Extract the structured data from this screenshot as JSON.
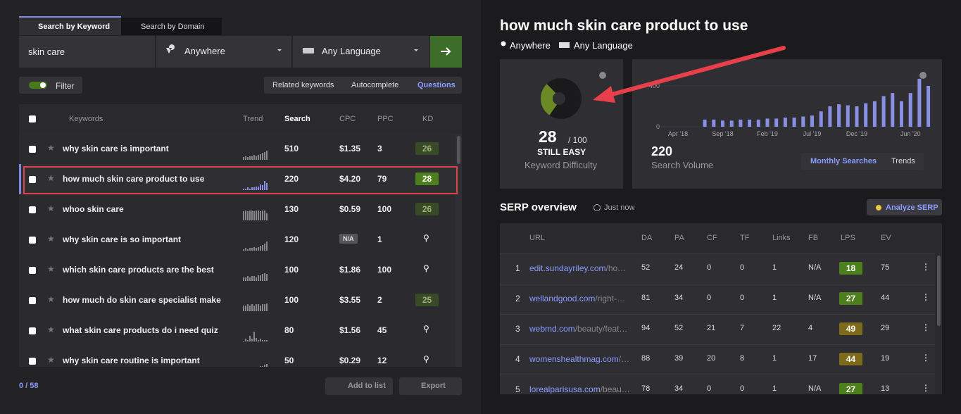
{
  "tabs": [
    "Search by Keyword",
    "Search by Domain"
  ],
  "search": {
    "query": "skin care",
    "location": "Anywhere",
    "language": "Any Language"
  },
  "filter": "Filter",
  "modes": [
    "Related keywords",
    "Autocomplete",
    "Questions"
  ],
  "keyword_table": {
    "columns": [
      "Keywords",
      "Trend",
      "Search",
      "CPC",
      "PPC",
      "KD"
    ],
    "rows": [
      {
        "keyword": "why skin care is important",
        "trend": [
          2,
          3,
          2,
          3,
          3,
          4,
          3,
          4,
          5,
          6,
          7,
          8
        ],
        "search": 510,
        "cpc": "$1.35",
        "ppc": 3,
        "kd": 26
      },
      {
        "keyword": "how much skin care product to use",
        "trend": [
          1,
          1,
          2,
          1,
          2,
          2,
          3,
          3,
          5,
          4,
          8,
          6
        ],
        "search": 220,
        "cpc": "$4.20",
        "ppc": 79,
        "kd": 28
      },
      {
        "keyword": "whoo skin care",
        "trend": [
          8,
          9,
          8,
          9,
          9,
          8,
          9,
          9,
          8,
          9,
          9,
          6
        ],
        "search": 130,
        "cpc": "$0.59",
        "ppc": 100,
        "kd": 26
      },
      {
        "keyword": "why skin care is so important",
        "trend": [
          1,
          2,
          1,
          2,
          2,
          3,
          2,
          3,
          4,
          5,
          6,
          8
        ],
        "search": 120,
        "cpc": "N/A",
        "ppc": 1,
        "kd": null
      },
      {
        "keyword": "which skin care products are the best",
        "trend": [
          3,
          3,
          4,
          3,
          4,
          4,
          3,
          5,
          5,
          6,
          7,
          6
        ],
        "search": 100,
        "cpc": "$1.86",
        "ppc": 100,
        "kd": null
      },
      {
        "keyword": "how much do skin care specialist make",
        "trend": [
          5,
          5,
          6,
          5,
          6,
          5,
          6,
          6,
          5,
          6,
          6,
          7
        ],
        "search": 100,
        "cpc": "$3.55",
        "ppc": 2,
        "kd": 25
      },
      {
        "keyword": "what skin care products do i need quiz",
        "trend": [
          0,
          2,
          1,
          5,
          2,
          9,
          3,
          1,
          2,
          1,
          1,
          1
        ],
        "search": 80,
        "cpc": "$1.56",
        "ppc": 45,
        "kd": null
      },
      {
        "keyword": "why skin care routine is important",
        "trend": [
          2,
          2,
          3,
          2,
          3,
          4,
          3,
          4,
          5,
          5,
          6,
          7
        ],
        "search": 50,
        "cpc": "$0.29",
        "ppc": 12,
        "kd": null
      }
    ]
  },
  "footer": {
    "count": "0 / 58",
    "add": "Add to list",
    "export": "Export"
  },
  "keyword": {
    "title": "how much skin care product to use",
    "location": "Anywhere",
    "language": "Any Language"
  },
  "difficulty": {
    "score": 28,
    "out_of": "/ 100",
    "status": "STILL EASY",
    "label": "Keyword Difficulty"
  },
  "volume": {
    "value": 220,
    "label": "Search Volume",
    "buttons": [
      "Monthly Searches",
      "Trends"
    ],
    "chart": {
      "ylim": [
        0,
        400
      ],
      "yticks": [
        0,
        400
      ],
      "xticks": [
        {
          "value": 0,
          "label": "Apr '18"
        },
        {
          "value": 5,
          "label": "Sep '18"
        },
        {
          "value": 10,
          "label": "Feb '19"
        },
        {
          "value": 15,
          "label": "Jul '19"
        },
        {
          "value": 20,
          "label": "Dec '19"
        },
        {
          "value": 26,
          "label": "Jun '20"
        }
      ],
      "values": [
        null,
        null,
        null,
        70,
        70,
        60,
        60,
        70,
        70,
        70,
        80,
        80,
        90,
        90,
        100,
        110,
        150,
        200,
        220,
        210,
        200,
        230,
        250,
        300,
        330,
        250,
        330,
        470,
        400
      ]
    }
  },
  "serp": {
    "title": "SERP overview",
    "time": "Just now",
    "button": "Analyze SERP",
    "columns": [
      "URL",
      "DA",
      "PA",
      "CF",
      "TF",
      "Links",
      "FB",
      "LPS",
      "EV"
    ],
    "rows": [
      {
        "rank": 1,
        "domain": "edit.sundayriley.com",
        "path": "/ho…",
        "da": 52,
        "pa": 24,
        "cf": 0,
        "tf": 0,
        "links": 1,
        "fb": "N/A",
        "lps": 18,
        "ev": 75
      },
      {
        "rank": 2,
        "domain": "wellandgood.com",
        "path": "/right-…",
        "da": 81,
        "pa": 34,
        "cf": 0,
        "tf": 0,
        "links": 1,
        "fb": "N/A",
        "lps": 27,
        "ev": 44
      },
      {
        "rank": 3,
        "domain": "webmd.com",
        "path": "/beauty/feat…",
        "da": 94,
        "pa": 52,
        "cf": 21,
        "tf": 7,
        "links": 22,
        "fb": 4,
        "lps": 49,
        "ev": 29
      },
      {
        "rank": 4,
        "domain": "womenshealthmag.com",
        "path": "/…",
        "da": 88,
        "pa": 39,
        "cf": 20,
        "tf": 8,
        "links": 1,
        "fb": 17,
        "lps": 44,
        "ev": 19
      },
      {
        "rank": 5,
        "domain": "lorealparisusa.com",
        "path": "/beau…",
        "da": 78,
        "pa": 34,
        "cf": 0,
        "tf": 0,
        "links": 1,
        "fb": "N/A",
        "lps": 27,
        "ev": 13
      }
    ]
  }
}
